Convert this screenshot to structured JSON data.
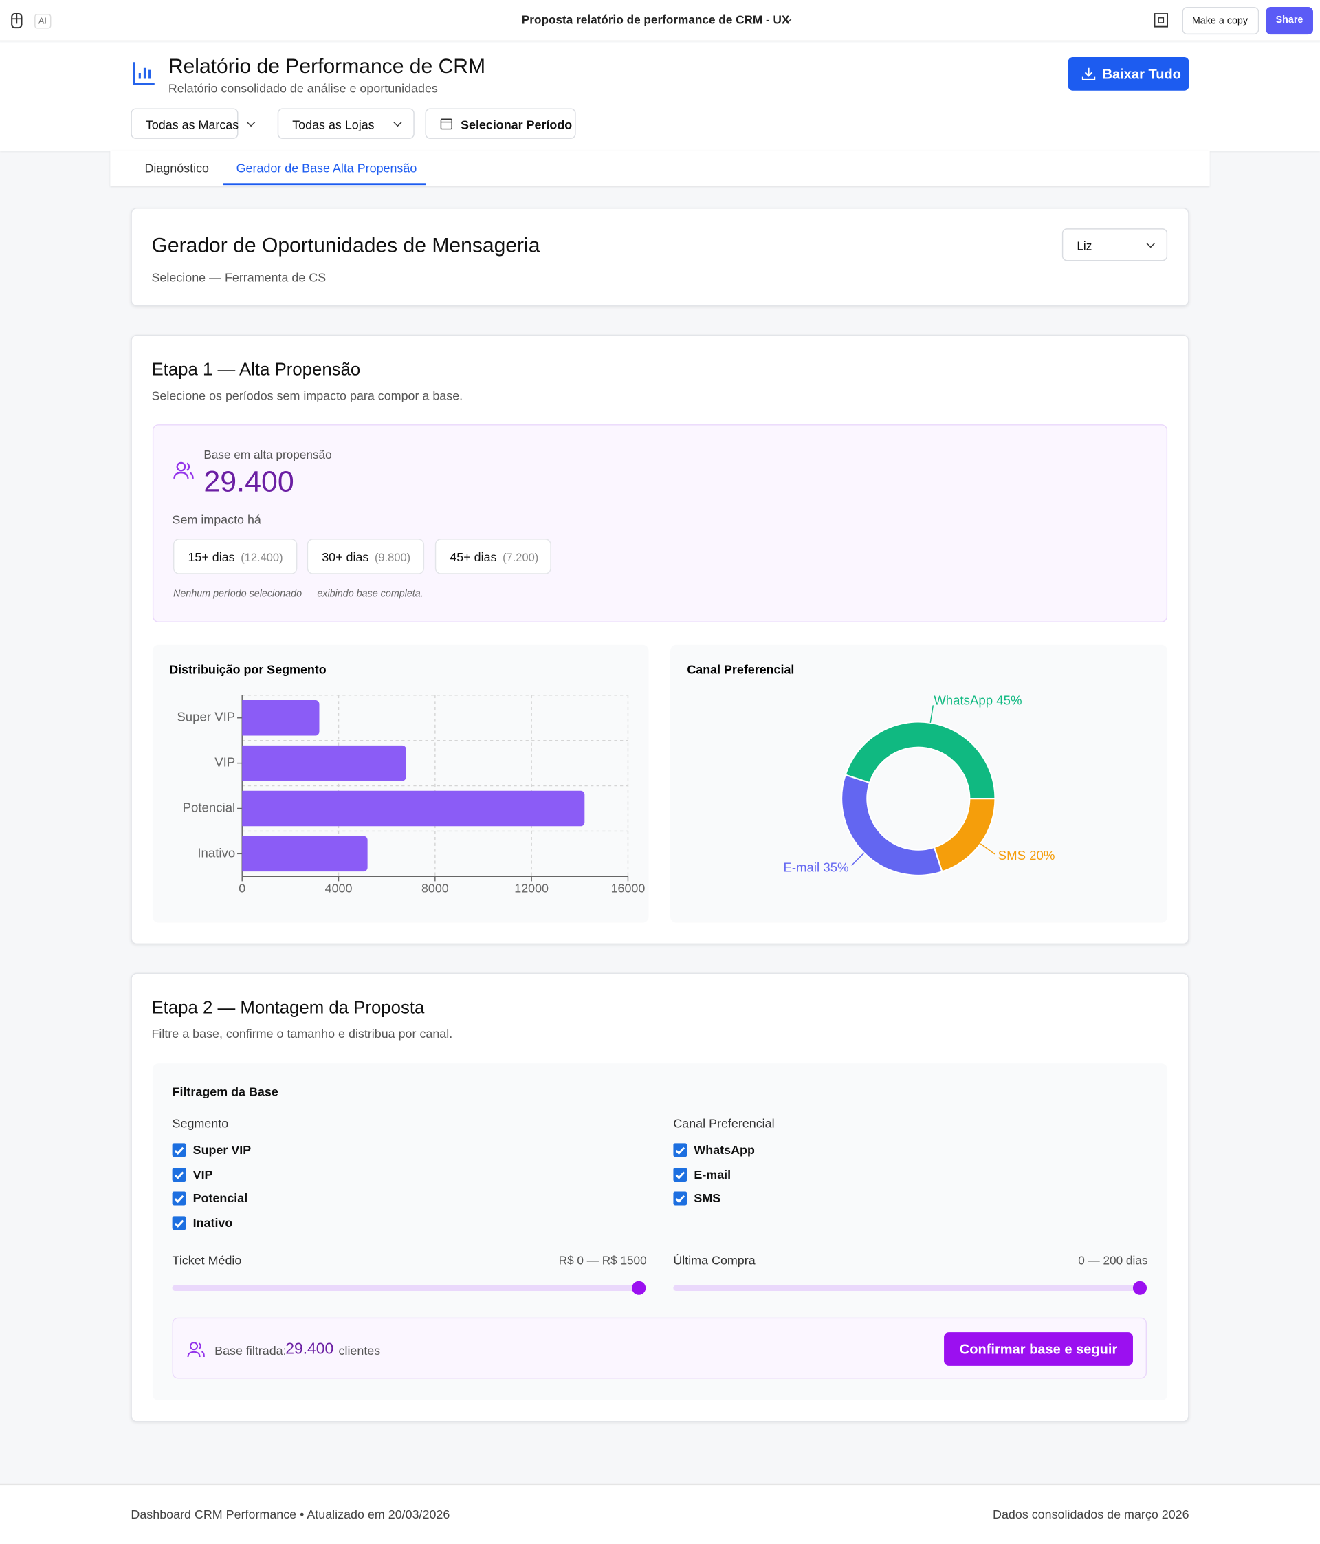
{
  "topbar": {
    "ai_badge": "AI",
    "file_title": "Proposta relatório de performance de CRM - UX",
    "make_copy": "Make a copy",
    "share": "Share"
  },
  "header": {
    "title": "Relatório de Performance de CRM",
    "subtitle": "Relatório consolidado de análise e oportunidades",
    "download": "Baixar Tudo",
    "filters": [
      "Todas as Marcas",
      "Todas as Lojas",
      "Selecionar Período"
    ]
  },
  "tabs": [
    "Diagnóstico",
    "Gerador de Base Alta Propensão"
  ],
  "generator": {
    "title": "Gerador de Oportunidades de Mensageria",
    "subtitle": "Selecione — Ferramenta de CS",
    "user_select": "Liz"
  },
  "step1": {
    "title": "Etapa 1 — Alta Propensão",
    "subtitle": "Selecione os períodos sem impacto para compor a base.",
    "base_label": "Base em alta propensão",
    "base_value": "29.400",
    "no_impact_label": "Sem impacto há",
    "periods": [
      {
        "label": "15+ dias",
        "count": "(12.400)"
      },
      {
        "label": "30+ dias",
        "count": "(9.800)"
      },
      {
        "label": "45+ dias",
        "count": "(7.200)"
      }
    ],
    "note": "Nenhum período selecionado — exibindo base completa."
  },
  "chart_data": [
    {
      "type": "bar",
      "title": "Distribuição por Segmento",
      "categories": [
        "Super VIP",
        "VIP",
        "Potencial",
        "Inativo"
      ],
      "values": [
        3200,
        6800,
        14200,
        5200
      ],
      "color": "#8b5cf6",
      "xlim": [
        0,
        16000
      ],
      "xticks": [
        0,
        4000,
        8000,
        12000,
        16000
      ],
      "grid": true
    },
    {
      "type": "pie",
      "title": "Canal Preferencial",
      "categories": [
        "WhatsApp",
        "SMS",
        "E-mail"
      ],
      "values": [
        45,
        20,
        35
      ],
      "value_labels": [
        "WhatsApp 45%",
        "SMS 20%",
        "E-mail 35%"
      ],
      "colors": [
        "#10b981",
        "#f59e0b",
        "#6366f1"
      ]
    }
  ],
  "step2": {
    "title": "Etapa 2 — Montagem da Proposta",
    "subtitle": "Filtre a base, confirme o tamanho e distribua por canal.",
    "filter_title": "Filtragem da Base",
    "segment_label": "Segmento",
    "segments": [
      "Super VIP",
      "VIP",
      "Potencial",
      "Inativo"
    ],
    "channel_label": "Canal Preferencial",
    "channels": [
      "WhatsApp",
      "E-mail",
      "SMS"
    ],
    "ticket_label": "Ticket Médio",
    "ticket_range": "R$ 0 — R$ 1500",
    "last_purchase_label": "Última Compra",
    "last_purchase_range": "0 — 200 dias",
    "filtered_label": "Base filtrada:",
    "filtered_value": "29.400",
    "filtered_unit": "clientes",
    "confirm": "Confirmar base e seguir"
  },
  "footer": {
    "left": "Dashboard CRM Performance • Atualizado em 20/03/2026",
    "right": "Dados consolidados de março 2026"
  }
}
